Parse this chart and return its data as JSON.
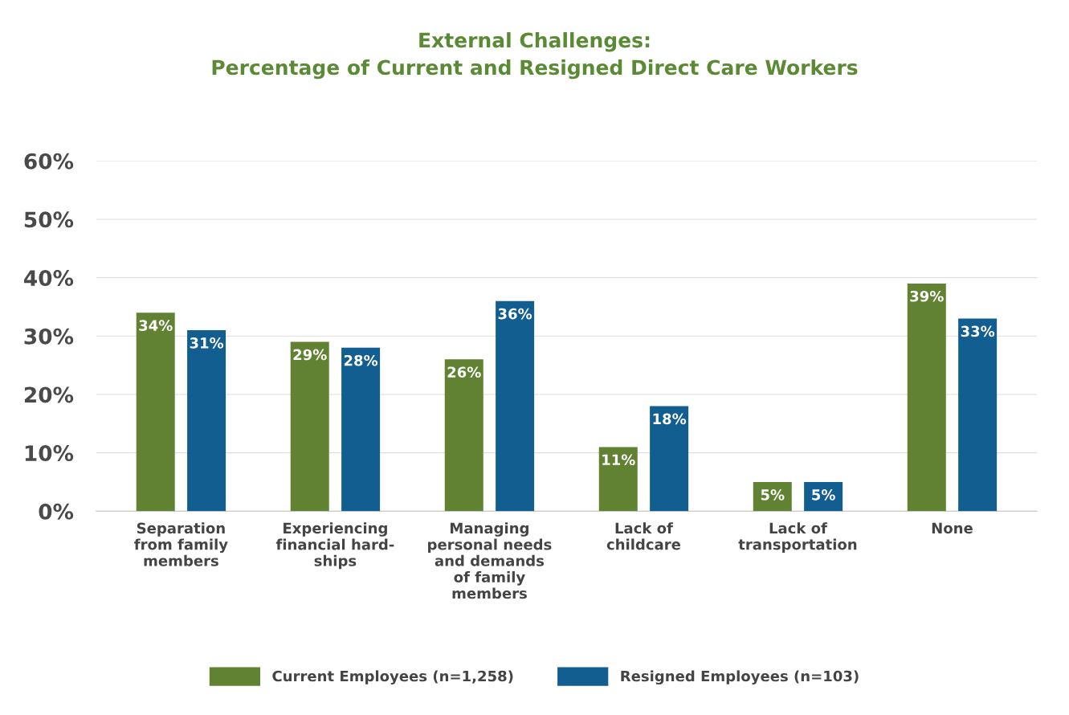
{
  "chart_data": {
    "type": "bar",
    "title": "External Challenges:\nPercentage of Current and Resigned Direct Care Workers",
    "categories": [
      "Separation\nfrom family\nmembers",
      "Experiencing\nfinancial hard-\nships",
      "Managing\npersonal needs\nand demands\nof family\nmembers",
      "Lack of\nchildcare",
      "Lack of\ntransportation",
      "None"
    ],
    "series": [
      {
        "name": "Current Employees (n=1,258)",
        "color": "#628233",
        "values": [
          34,
          29,
          26,
          11,
          5,
          39
        ],
        "value_labels": [
          "34%",
          "29%",
          "26%",
          "11%",
          "5%",
          "39%"
        ]
      },
      {
        "name": "Resigned Employees (n=103)",
        "color": "#135e91",
        "values": [
          31,
          28,
          36,
          18,
          5,
          33
        ],
        "value_labels": [
          "31%",
          "28%",
          "36%",
          "18%",
          "5%",
          "33%"
        ]
      }
    ],
    "ylim": [
      0,
      60
    ],
    "yticks": [
      {
        "value": 0,
        "label": "0%"
      },
      {
        "value": 10,
        "label": "10%"
      },
      {
        "value": 20,
        "label": "20%"
      },
      {
        "value": 30,
        "label": "30%"
      },
      {
        "value": 40,
        "label": "40%"
      },
      {
        "value": 50,
        "label": "50%"
      },
      {
        "value": 60,
        "label": "60%"
      }
    ],
    "grid": "y",
    "legend": "bottom"
  }
}
